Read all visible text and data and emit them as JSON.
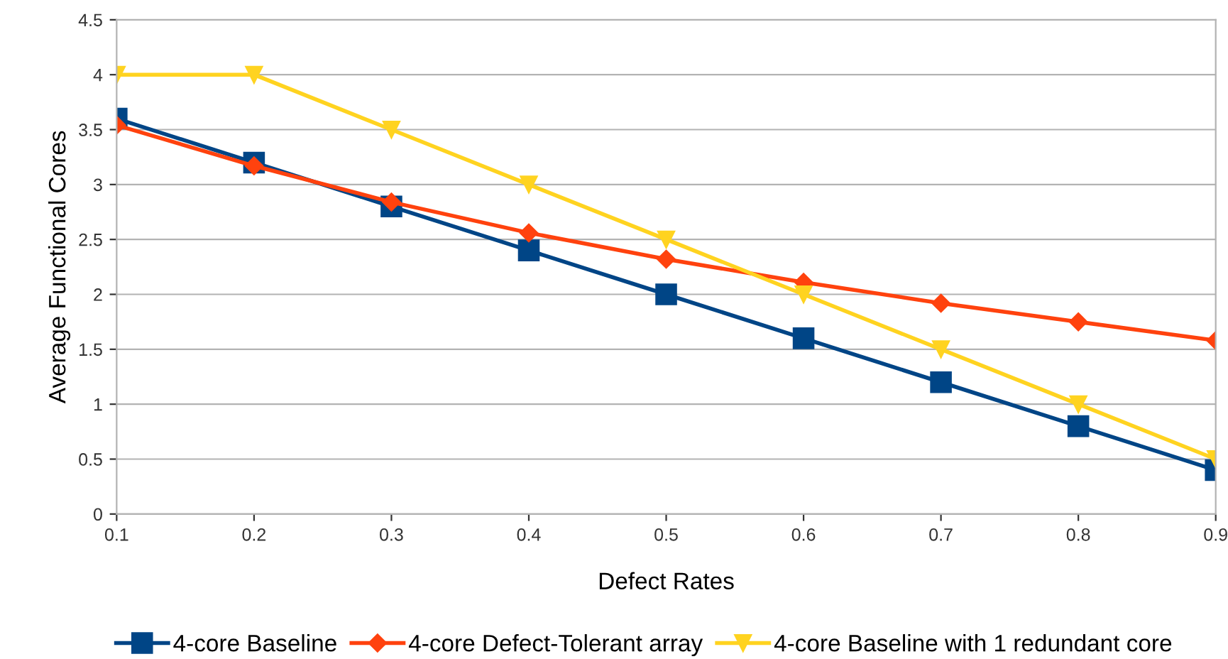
{
  "chart_data": {
    "type": "line",
    "xlabel": "Defect Rates",
    "ylabel": "Average Functional Cores",
    "x": [
      0.1,
      0.2,
      0.3,
      0.4,
      0.5,
      0.6,
      0.7,
      0.8,
      0.9
    ],
    "series": [
      {
        "name": "4-core Baseline",
        "color": "#004586",
        "marker": "square",
        "values": [
          3.6,
          3.2,
          2.8,
          2.4,
          2.0,
          1.6,
          1.2,
          0.8,
          0.4
        ]
      },
      {
        "name": "4-core Defect-Tolerant array",
        "color": "#ff420e",
        "marker": "diamond",
        "values": [
          3.54,
          3.17,
          2.84,
          2.56,
          2.32,
          2.11,
          1.92,
          1.75,
          1.58
        ]
      },
      {
        "name": "4-core Baseline with 1 redundant core",
        "color": "#ffd320",
        "marker": "triangle",
        "values": [
          4,
          4,
          3.5,
          3.0,
          2.5,
          2.0,
          1.5,
          1.0,
          0.5
        ]
      }
    ],
    "xlim": [
      0.1,
      0.9
    ],
    "xticks": [
      0.1,
      0.2,
      0.3,
      0.4,
      0.5,
      0.6,
      0.7,
      0.8,
      0.9
    ],
    "ylim": [
      0,
      4.5
    ],
    "yticks": [
      0,
      0.5,
      1,
      1.5,
      2,
      2.5,
      3,
      3.5,
      4,
      4.5
    ],
    "grid": "y",
    "legend": "bottom",
    "line_style": "solid"
  }
}
